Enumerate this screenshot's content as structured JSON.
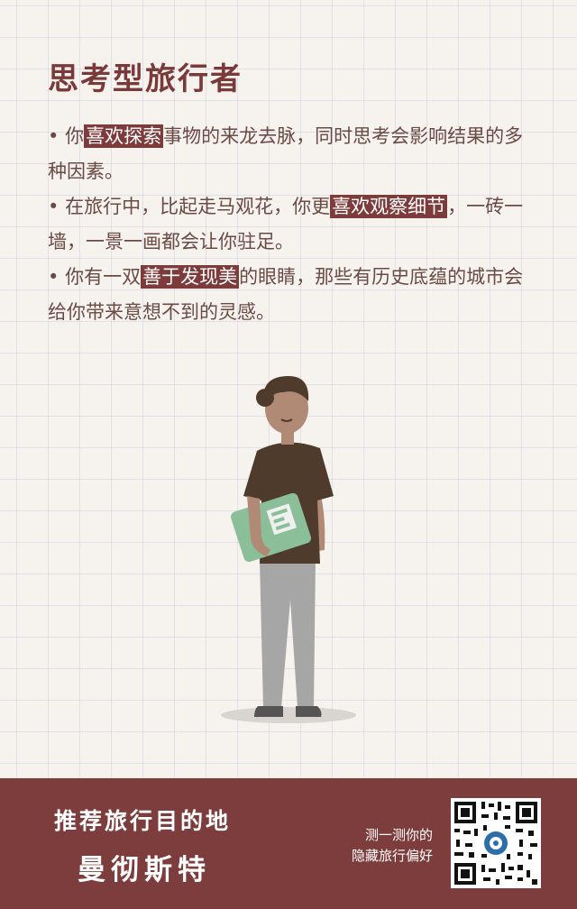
{
  "title": "思考型旅行者",
  "paragraphs": [
    {
      "bullet": "•",
      "pre": " 你",
      "hl": "喜欢探索",
      "post": "事物的来龙去脉，同时思考会影响结果的多种因素。"
    },
    {
      "bullet": "•",
      "pre": " 在旅行中，比起走马观花，你更",
      "hl": "喜欢观察细节",
      "post": "，一砖一墙，一景一画都会让你驻足。"
    },
    {
      "bullet": "•",
      "pre": " 你有一双",
      "hl": "善于发现美",
      "post": "的眼睛，那些有历史底蕴的城市会给你带来意想不到的灵感。"
    }
  ],
  "footer": {
    "recommend_label": "推荐旅行目的地",
    "city": "曼彻斯特",
    "test_line1": "测一测你的",
    "test_line2": "隐藏旅行偏好"
  },
  "colors": {
    "accent": "#7d3d3c",
    "text": "#6b4a44",
    "background": "#f6f2ee"
  },
  "icons": [
    "qr-code-icon",
    "traveler-illustration"
  ]
}
